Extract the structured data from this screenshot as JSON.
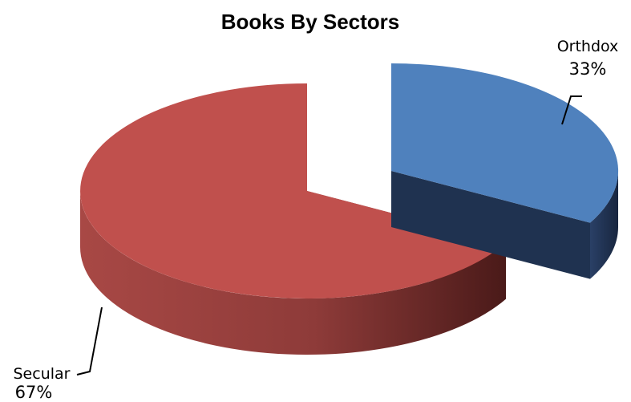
{
  "chart_data": {
    "type": "pie",
    "title": "Books By Sectors",
    "style": "3d-exploded",
    "slices": [
      {
        "label": "Orthdox",
        "value": 33,
        "percent_label": "33%",
        "color": "#4F81BD",
        "side_color": "#1F3250",
        "exploded": true
      },
      {
        "label": "Secular",
        "value": 67,
        "percent_label": "67%",
        "color": "#C0504D",
        "side_color": "#6E2A28",
        "exploded": false
      }
    ],
    "legend": "none",
    "data_labels": "category-and-percent"
  }
}
